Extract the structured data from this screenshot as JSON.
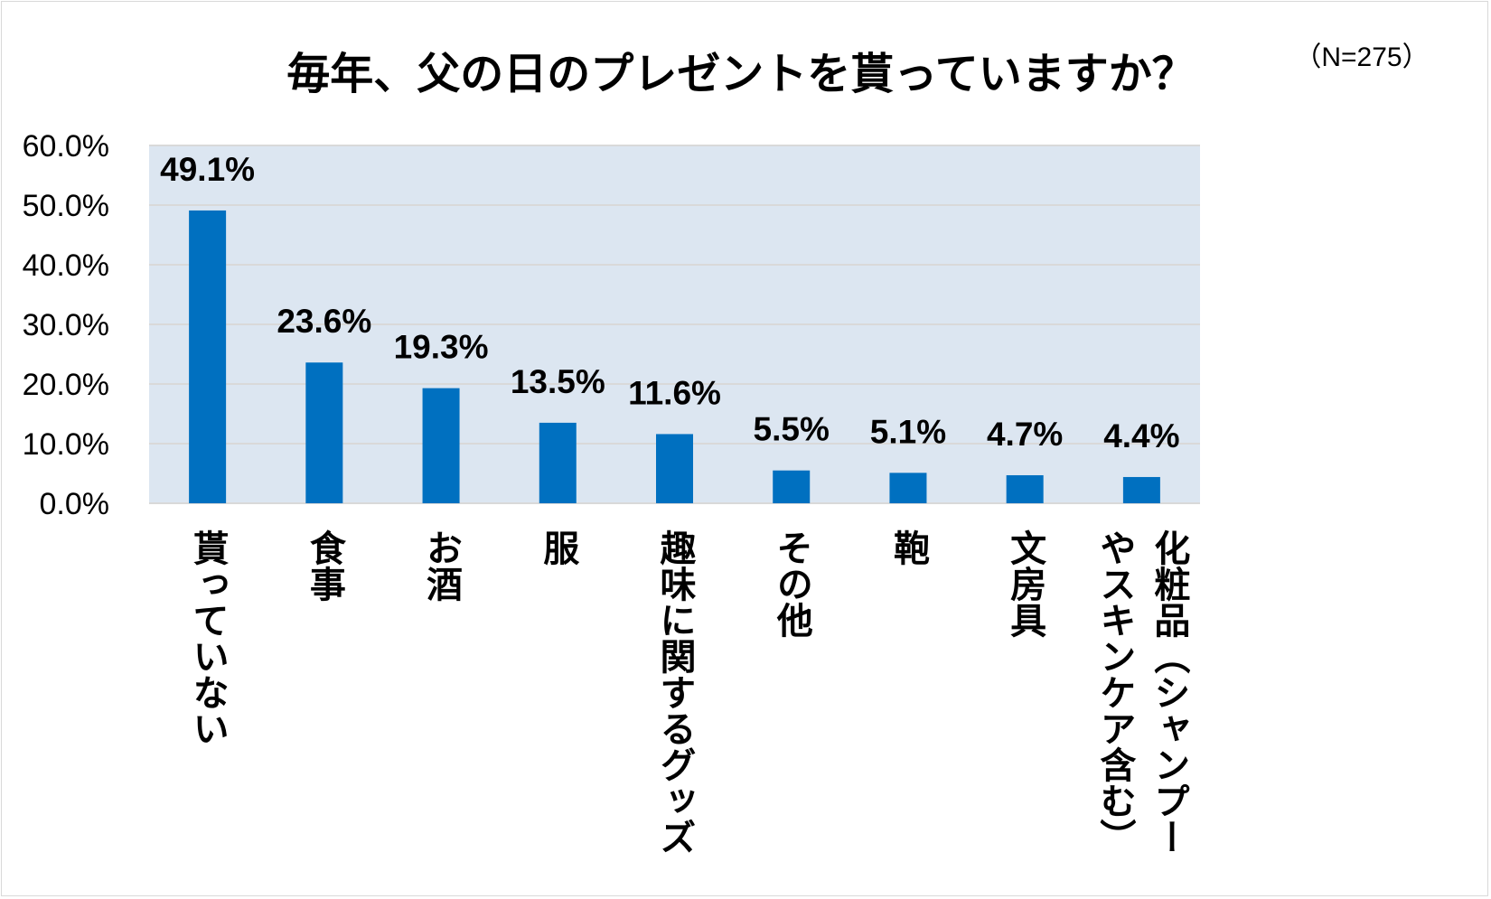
{
  "chart_data": {
    "type": "bar",
    "title": "毎年、父の日のプレゼントを貰っていますか？",
    "subtitle": "（N=275）",
    "xlabel": "",
    "ylabel": "",
    "ylim": [
      0,
      60
    ],
    "yticks": [
      "0.0%",
      "10.0%",
      "20.0%",
      "30.0%",
      "40.0%",
      "50.0%",
      "60.0%"
    ],
    "grid": true,
    "categories": [
      [
        "貰っていない"
      ],
      [
        "食事"
      ],
      [
        "お酒"
      ],
      [
        "服"
      ],
      [
        "趣味に関するグッズ"
      ],
      [
        "その他"
      ],
      [
        "鞄"
      ],
      [
        "文房具"
      ],
      [
        "化粧品（シャンプー",
        "やスキンケア含む）"
      ]
    ],
    "values": [
      49.1,
      23.6,
      19.3,
      13.5,
      11.6,
      5.5,
      5.1,
      4.7,
      4.4
    ],
    "data_labels": [
      "49.1%",
      "23.6%",
      "19.3%",
      "13.5%",
      "11.6%",
      "5.5%",
      "5.1%",
      "4.7%",
      "4.4%"
    ],
    "colors": {
      "bar": "#0070c0",
      "plot_background": "#dce6f1",
      "gridline": "#d9d9d9",
      "text": "#000000"
    }
  }
}
